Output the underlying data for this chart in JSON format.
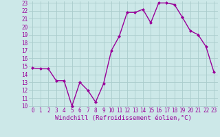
{
  "x": [
    0,
    1,
    2,
    3,
    4,
    5,
    6,
    7,
    8,
    9,
    10,
    11,
    12,
    13,
    14,
    15,
    16,
    17,
    18,
    19,
    20,
    21,
    22,
    23
  ],
  "y": [
    14.8,
    14.7,
    14.7,
    13.2,
    13.2,
    10.0,
    13.0,
    12.0,
    10.5,
    12.8,
    17.0,
    18.8,
    21.8,
    21.8,
    22.2,
    20.5,
    23.0,
    23.0,
    22.8,
    21.2,
    19.5,
    19.0,
    17.5,
    14.3
  ],
  "line_color": "#990099",
  "marker": "D",
  "marker_size": 2.0,
  "linewidth": 1.0,
  "bg_color": "#cce8e8",
  "grid_color": "#aacccc",
  "xlabel": "Windchill (Refroidissement éolien,°C)",
  "xlabel_color": "#990099",
  "tick_color": "#990099",
  "ylim": [
    10,
    23
  ],
  "xlim": [
    -0.5,
    23.5
  ],
  "yticks": [
    10,
    11,
    12,
    13,
    14,
    15,
    16,
    17,
    18,
    19,
    20,
    21,
    22,
    23
  ],
  "xticks": [
    0,
    1,
    2,
    3,
    4,
    5,
    6,
    7,
    8,
    9,
    10,
    11,
    12,
    13,
    14,
    15,
    16,
    17,
    18,
    19,
    20,
    21,
    22,
    23
  ],
  "font_size_ticks": 5.5,
  "font_size_label": 6.5
}
